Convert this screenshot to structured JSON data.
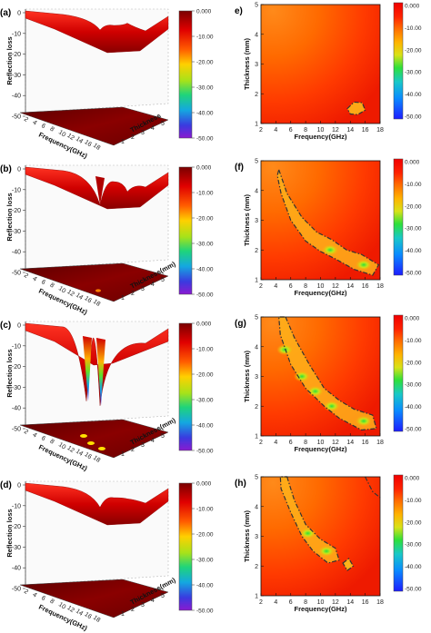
{
  "colors": {
    "colormap": [
      "#1d1dff",
      "#0a8cff",
      "#19c8c8",
      "#2ee03a",
      "#d8e218",
      "#ffb300",
      "#ff6a00",
      "#ff2200",
      "#f00000"
    ],
    "surface_dark": "#7a0000",
    "surface_mid": "#d40000",
    "surface_light": "#ff2a1a",
    "contour": "#333333"
  },
  "chart_data": [
    {
      "panel": "(a)",
      "type": "surface3d",
      "zlabel": "Reflection loss",
      "xlabel": "Frequency(GHz)",
      "ylabel": "Thickness",
      "z_ticks": [
        "0",
        "-10",
        "-20",
        "-30",
        "-40",
        "-50"
      ],
      "x_ticks": [
        "2",
        "4",
        "6",
        "8",
        "10",
        "12",
        "14",
        "16",
        "18"
      ],
      "y_ticks": [
        "1",
        "2",
        "3",
        "4",
        "5"
      ],
      "colorbar_ticks": [
        "0.000",
        "-10.00",
        "-20.00",
        "-30.00",
        "-40.00",
        "-50.00"
      ],
      "zlim": [
        -50,
        0
      ],
      "min_rl": -11
    },
    {
      "panel": "(b)",
      "type": "surface3d",
      "zlabel": "Reflection loss",
      "xlabel": "Frequency(GHz)",
      "ylabel": "Thickness(mm)",
      "z_ticks": [
        "0",
        "-10",
        "-20",
        "-30",
        "-40",
        "-50"
      ],
      "x_ticks": [
        "2",
        "4",
        "6",
        "8",
        "10",
        "12",
        "14",
        "16",
        "18"
      ],
      "y_ticks": [
        "1",
        "2",
        "3",
        "4",
        "5"
      ],
      "colorbar_ticks": [
        "0.000",
        "-10.00",
        "-20.00",
        "-30.00",
        "-40.00",
        "-50.00"
      ],
      "zlim": [
        -50,
        0
      ],
      "min_rl": -22
    },
    {
      "panel": "(c)",
      "type": "surface3d",
      "zlabel": "Reflection loss",
      "xlabel": "Frequency(GHz)",
      "ylabel": "Thickness(mm)",
      "z_ticks": [
        "0",
        "-10",
        "-20",
        "-30",
        "-40",
        "-50"
      ],
      "x_ticks": [
        "2",
        "4",
        "6",
        "8",
        "10",
        "12",
        "14",
        "16",
        "18"
      ],
      "y_ticks": [
        "1",
        "2",
        "3",
        "4",
        "5"
      ],
      "colorbar_ticks": [
        "0.000",
        "-10.00",
        "-20.00",
        "-30.00",
        "-40.00",
        "-50.00"
      ],
      "zlim": [
        -50,
        0
      ],
      "min_rl": -45
    },
    {
      "panel": "(d)",
      "type": "surface3d",
      "zlabel": "Reflection loss",
      "xlabel": "Frequency(GHz)",
      "ylabel": "Thickness(mm)",
      "z_ticks": [
        "0",
        "-10",
        "-20",
        "-30",
        "-40",
        "-50"
      ],
      "x_ticks": [
        "2",
        "4",
        "6",
        "8",
        "10",
        "12",
        "14",
        "16",
        "18"
      ],
      "y_ticks": [
        "1",
        "2",
        "3",
        "4",
        "5"
      ],
      "colorbar_ticks": [
        "0.000",
        "-10.00",
        "-20.00",
        "-30.00",
        "-40.00",
        "-50.00"
      ],
      "zlim": [
        -50,
        0
      ],
      "min_rl": -14
    },
    {
      "panel": "e)",
      "type": "heatmap",
      "xlabel": "Frequency(GHz)",
      "ylabel": "Thickness (mm)",
      "x_ticks": [
        "2",
        "4",
        "6",
        "8",
        "10",
        "12",
        "14",
        "16",
        "18"
      ],
      "y_ticks": [
        "1",
        "2",
        "3",
        "4",
        "5"
      ],
      "xlim": [
        2,
        18
      ],
      "ylim": [
        1,
        5
      ],
      "colorbar_ticks": [
        "0.000",
        "-10.00",
        "-20.00",
        "-30.00",
        "-40.00",
        "-50.00"
      ],
      "contour_-10dB": [
        [
          13.6,
          1.5
        ],
        [
          14.5,
          1.72
        ],
        [
          15.6,
          1.7
        ],
        [
          16.0,
          1.45
        ],
        [
          15.0,
          1.3
        ],
        [
          14.0,
          1.32
        ]
      ]
    },
    {
      "panel": "(f)",
      "type": "heatmap",
      "xlabel": "Frequency(GHz)",
      "ylabel": "Thickness (mm)",
      "x_ticks": [
        "2",
        "4",
        "6",
        "8",
        "10",
        "12",
        "14",
        "16",
        "18"
      ],
      "y_ticks": [
        "1",
        "2",
        "3",
        "4",
        "5"
      ],
      "xlim": [
        2,
        18
      ],
      "ylim": [
        1,
        5
      ],
      "colorbar_ticks": [
        "0.000",
        "-10.00",
        "-20.00",
        "-30.00",
        "-40.00",
        "-50.00"
      ],
      "contour_-10dB": [
        [
          4.4,
          4.7
        ],
        [
          5.5,
          3.9
        ],
        [
          7.5,
          3.1
        ],
        [
          9.5,
          2.6
        ],
        [
          11.5,
          2.35
        ],
        [
          13.5,
          2.0
        ],
        [
          15.5,
          1.85
        ],
        [
          17.8,
          1.5
        ],
        [
          17.0,
          1.15
        ],
        [
          14.5,
          1.35
        ],
        [
          12.0,
          1.7
        ],
        [
          10.0,
          1.95
        ],
        [
          8.0,
          2.3
        ],
        [
          6.0,
          3.0
        ],
        [
          4.7,
          3.9
        ],
        [
          4.2,
          4.5
        ]
      ],
      "peaks": [
        {
          "x": 11.3,
          "y": 2.0
        },
        {
          "x": 15.8,
          "y": 1.5
        }
      ]
    },
    {
      "panel": "(g)",
      "type": "heatmap",
      "xlabel": "Frequency(GHz)",
      "ylabel": "Thickness (mm)",
      "x_ticks": [
        "2",
        "4",
        "6",
        "8",
        "10",
        "12",
        "14",
        "16",
        "18"
      ],
      "y_ticks": [
        "1",
        "2",
        "3",
        "4",
        "5"
      ],
      "xlim": [
        2,
        18
      ],
      "ylim": [
        1,
        5
      ],
      "colorbar_ticks": [
        "0.000",
        "-10.00",
        "-20.00",
        "-30.00",
        "-40.00",
        "-50.00"
      ],
      "contour_-10dB": [
        [
          5.3,
          5.0
        ],
        [
          6.5,
          4.3
        ],
        [
          8.5,
          3.4
        ],
        [
          10.5,
          2.6
        ],
        [
          12.5,
          2.2
        ],
        [
          14.5,
          1.9
        ],
        [
          17.0,
          1.7
        ],
        [
          17.5,
          1.25
        ],
        [
          15.5,
          1.2
        ],
        [
          12.5,
          1.6
        ],
        [
          10.5,
          2.0
        ],
        [
          8.0,
          2.6
        ],
        [
          6.0,
          3.4
        ],
        [
          4.6,
          4.4
        ],
        [
          4.4,
          5.0
        ]
      ],
      "peaks": [
        {
          "x": 5.2,
          "y": 3.9
        },
        {
          "x": 7.5,
          "y": 3.0
        },
        {
          "x": 9.3,
          "y": 2.5
        },
        {
          "x": 11.5,
          "y": 2.0
        },
        {
          "x": 15.8,
          "y": 1.5
        }
      ]
    },
    {
      "panel": "(h)",
      "type": "heatmap",
      "xlabel": "Frequency(GHz)",
      "ylabel": "Thickness (mm)",
      "x_ticks": [
        "2",
        "4",
        "6",
        "8",
        "10",
        "12",
        "14",
        "16",
        "18"
      ],
      "y_ticks": [
        "1",
        "2",
        "3",
        "4",
        "5"
      ],
      "xlim": [
        2,
        18
      ],
      "ylim": [
        1,
        5
      ],
      "colorbar_ticks": [
        "0.000",
        "-10.00",
        "-20.00",
        "-30.00",
        "-40.00",
        "-50.00"
      ],
      "contour_-10dB": [
        [
          5.5,
          5.0
        ],
        [
          6.5,
          4.2
        ],
        [
          8.0,
          3.4
        ],
        [
          10.0,
          2.9
        ],
        [
          12.0,
          2.6
        ],
        [
          12.5,
          2.2
        ],
        [
          11.0,
          2.1
        ],
        [
          9.0,
          2.5
        ],
        [
          7.5,
          3.0
        ],
        [
          6.0,
          3.8
        ],
        [
          4.7,
          4.6
        ],
        [
          4.6,
          5.0
        ]
      ],
      "extra_contours": [
        [
          [
            13.0,
            2.1
          ],
          [
            13.8,
            2.25
          ],
          [
            14.4,
            2.0
          ],
          [
            13.6,
            1.85
          ]
        ],
        [
          [
            16.0,
            5.0
          ],
          [
            17.0,
            4.5
          ],
          [
            18.0,
            4.3
          ]
        ]
      ],
      "peaks": [
        {
          "x": 8.3,
          "y": 3.1
        },
        {
          "x": 10.8,
          "y": 2.5
        }
      ]
    }
  ]
}
